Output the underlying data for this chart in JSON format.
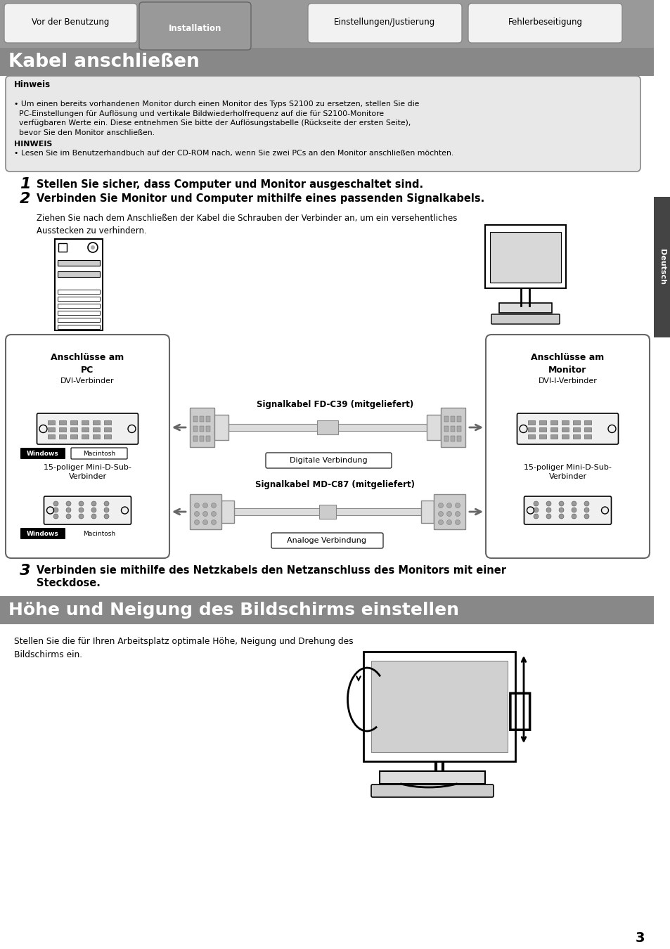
{
  "page_bg": "#ffffff",
  "tab_bg": "#888888",
  "tab_labels": [
    "Vor der Benutzung",
    "Installation",
    "Einstellungen/Justierung",
    "Fehlerbeseitigung"
  ],
  "active_tab": 1,
  "header_title": "Kabel anschließen",
  "hinweis_title": "Hinweis",
  "hinweis_text1": "• Um einen bereits vorhandenen Monitor durch einen Monitor des Typs S2100 zu ersetzen, stellen Sie die\n  PC-Einstellungen für Auflösung und vertikale Bildwiederholfrequenz auf die für S2100-Monitore\n  verfügbaren Werte ein. Diese entnehmen Sie bitte der Auflösungstabelle (Rückseite der ersten Seite),\n  bevor Sie den Monitor anschließen.",
  "hinweis_title2": "HINWEIS",
  "hinweis_text2": "• Lesen Sie im Benutzerhandbuch auf der CD-ROM nach, wenn Sie zwei PCs an den Monitor anschließen möchten.",
  "step1_num": "1",
  "step1_text": "Stellen Sie sicher, dass Computer und Monitor ausgeschaltet sind.",
  "step2_num": "2",
  "step2_bold": "Verbinden Sie Monitor und Computer mithilfe eines passenden Signalkabels.",
  "step2_text": "Ziehen Sie nach dem Anschließen der Kabel die Schrauben der Verbinder an, um ein versehentliches\nAusstecken zu verhindern.",
  "box_left_title1": "Anschlüsse am",
  "box_left_title2": "PC",
  "box_left_sub1": "DVI-Verbinder",
  "box_left_sub2": "15-poliger Mini-D-Sub-\nVerbinder",
  "box_left_win": "Windows",
  "box_left_mac": "Macintosh",
  "cable1_label": "Signalkabel FD-C39 (mitgeliefert)",
  "cable1_sub": "Digitale Verbindung",
  "cable2_label": "Signalkabel MD-C87 (mitgeliefert)",
  "cable2_sub": "Analoge Verbindung",
  "box_right_title1": "Anschlüsse am",
  "box_right_title2": "Monitor",
  "box_right_sub1": "DVI-I-Verbinder",
  "box_right_sub2": "15-poliger Mini-D-Sub-\nVerbinder",
  "step3_num": "3",
  "step3_bold": "Verbinden sie mithilfe des Netzkabels den Netzanschluss des Monitors mit einer\nSteckdose.",
  "section2_title": "Höhe und Neigung des Bildschirms einstellen",
  "section2_text": "Stellen Sie die für Ihren Arbeitsplatz optimale Höhe, Neigung und Drehung des\nBildschirms ein.",
  "deutsch_label": "Deutsch",
  "page_number": "3",
  "sidebar_color": "#444444",
  "tab_gray": "#999999",
  "box_bg": "#e8e8e8",
  "header_gray": "#888888"
}
